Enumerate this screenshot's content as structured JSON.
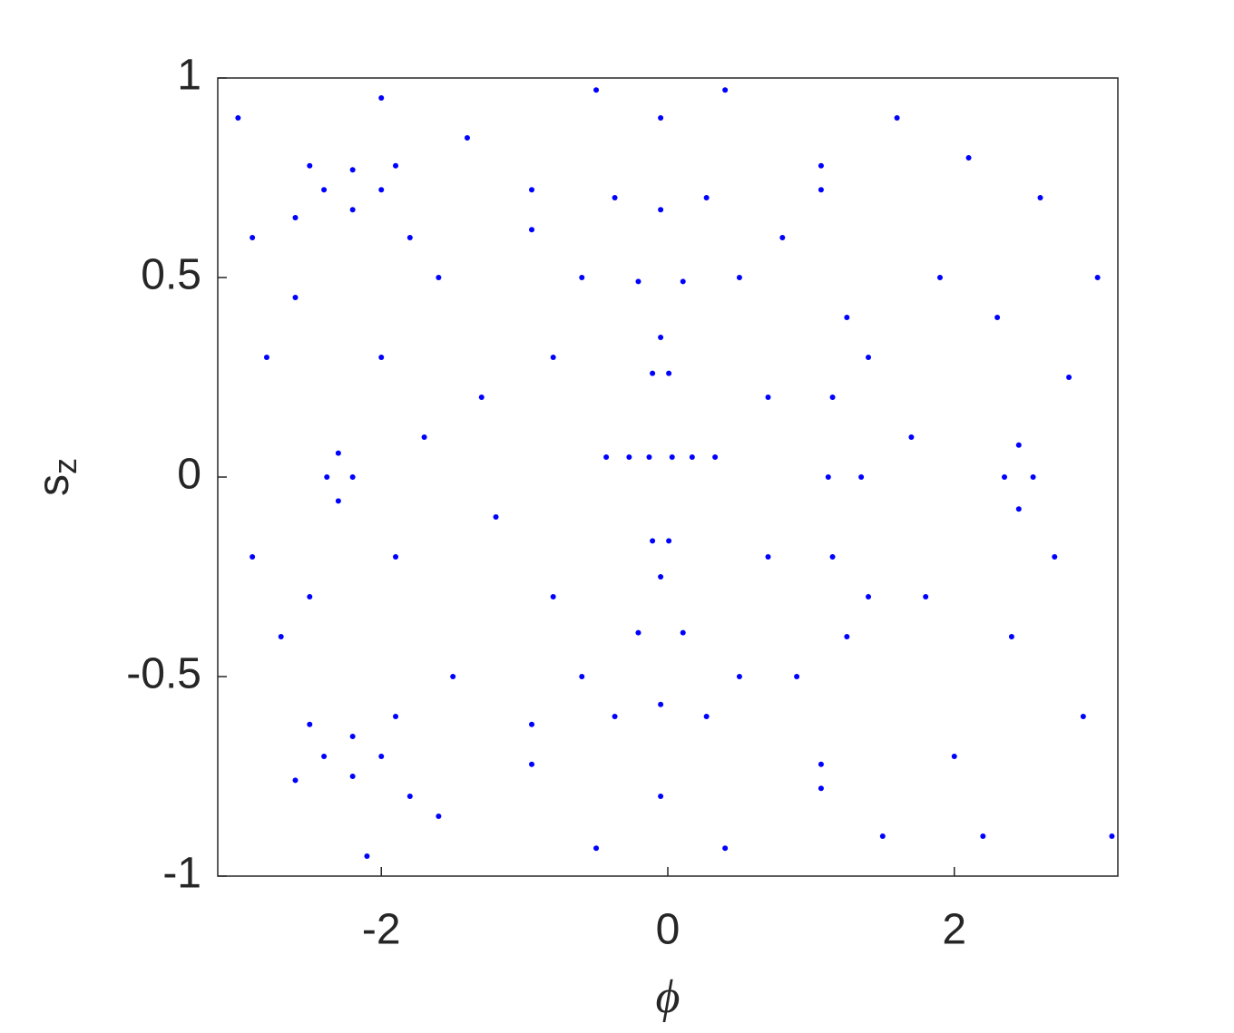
{
  "chart_data": {
    "type": "scatter",
    "xlabel": "ϕ",
    "ylabel": "s",
    "ylabel_subscript": "z",
    "xlim": [
      -3.1416,
      3.1416
    ],
    "ylim": [
      -1,
      1
    ],
    "xticks": [
      -2,
      0,
      2
    ],
    "yticks": [
      -1,
      -0.5,
      0,
      0.5,
      1
    ],
    "series": [
      {
        "color": "#0000ff",
        "x": [
          0.03,
          0.007,
          -0.05,
          -0.107,
          -0.13,
          -0.107,
          -0.05,
          0.007,
          0.17,
          0.106,
          -0.05,
          -0.206,
          -0.27,
          -0.206,
          -0.05,
          0.106,
          0.33,
          0.27,
          -0.05,
          -0.37,
          -0.43,
          -0.37,
          -0.05,
          0.27,
          0.5,
          0.5,
          0.4,
          -0.5,
          -0.6,
          -0.6,
          -0.5,
          0.4,
          -2.0,
          -2.2,
          -2.4,
          -2.2,
          -1.9,
          -2.5,
          -2.6,
          -1.8,
          -2.0,
          -2.2,
          -2.4,
          -2.2,
          -1.9,
          -2.5,
          -2.6,
          -1.8,
          -2.2,
          -2.3,
          -2.38,
          -2.3,
          2.55,
          2.45,
          2.35,
          2.45,
          1.25,
          1.15,
          1.12,
          1.15,
          1.25,
          1.4,
          1.35,
          1.4,
          -0.95,
          -0.95,
          -0.95,
          -0.95,
          1.07,
          1.07,
          1.07,
          1.07,
          -3.0,
          -2.8,
          -2.9,
          -2.7,
          -2.9,
          -2.6,
          -2.5,
          -2.0,
          -1.9,
          -1.7,
          -1.6,
          -1.5,
          -1.3,
          -1.2,
          -1.4,
          -1.6,
          -2.0,
          -2.1,
          -0.8,
          -0.8,
          0.7,
          0.7,
          0.8,
          0.9,
          1.6,
          1.7,
          1.8,
          1.9,
          2.0,
          2.1,
          2.3,
          2.4,
          2.6,
          2.7,
          2.8,
          2.9,
          3.0,
          3.1,
          2.2,
          1.5
        ],
        "values": [
          0.05,
          0.26,
          0.35,
          0.26,
          0.05,
          -0.16,
          -0.25,
          -0.16,
          0.05,
          0.49,
          0.67,
          0.49,
          0.05,
          -0.39,
          -0.57,
          -0.39,
          0.05,
          0.7,
          0.9,
          0.7,
          0.05,
          -0.6,
          -0.8,
          -0.6,
          0.5,
          -0.5,
          0.97,
          0.97,
          0.5,
          -0.5,
          -0.93,
          -0.93,
          0.72,
          0.77,
          0.72,
          0.67,
          0.78,
          0.78,
          0.65,
          0.6,
          -0.7,
          -0.65,
          -0.7,
          -0.75,
          -0.6,
          -0.62,
          -0.76,
          -0.8,
          0,
          0.06,
          0,
          -0.06,
          0,
          0.08,
          0,
          -0.08,
          0.4,
          0.2,
          0,
          -0.2,
          -0.4,
          0.3,
          0,
          -0.3,
          0.72,
          0.62,
          -0.62,
          -0.72,
          0.78,
          0.72,
          -0.72,
          -0.78,
          0.9,
          0.3,
          -0.2,
          -0.4,
          0.6,
          0.45,
          -0.3,
          0.3,
          -0.2,
          0.1,
          0.5,
          -0.5,
          0.2,
          -0.1,
          0.85,
          -0.85,
          0.95,
          -0.95,
          0.3,
          -0.3,
          0.2,
          -0.2,
          0.6,
          -0.5,
          0.9,
          0.1,
          -0.3,
          0.5,
          -0.7,
          0.8,
          0.4,
          -0.4,
          0.7,
          -0.2,
          0.25,
          -0.6,
          0.5,
          -0.9,
          -0.9,
          -0.9
        ]
      }
    ]
  }
}
